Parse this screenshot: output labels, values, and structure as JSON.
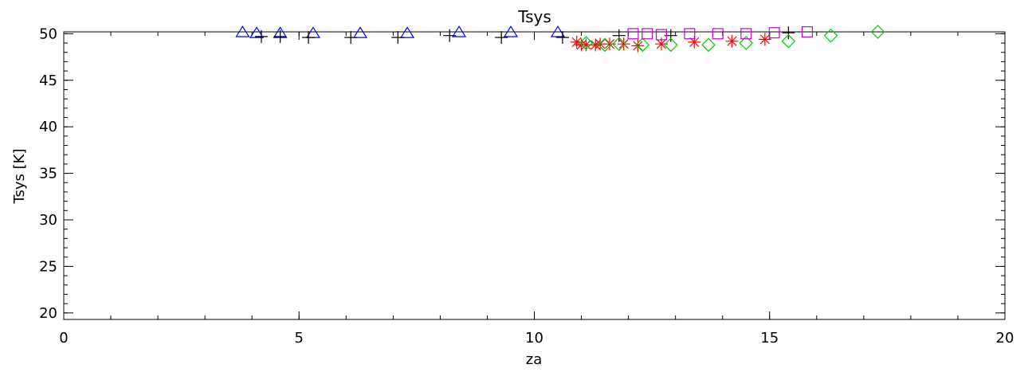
{
  "chart_data": {
    "type": "scatter",
    "title": "Tsys",
    "xlabel": "za",
    "ylabel": "Tsys [K]",
    "xlim": [
      0,
      20
    ],
    "ylim": [
      19.3,
      50.2
    ],
    "xticks": [
      0,
      5,
      10,
      15,
      20
    ],
    "yticks": [
      20,
      25,
      30,
      35,
      40,
      45,
      50
    ],
    "x_minor_step": 1,
    "y_minor_step": 1,
    "grid": false,
    "legend": "none",
    "series": [
      {
        "marker": "triangle",
        "color": "#0000ff",
        "points": [
          [
            3.8,
            50.1
          ],
          [
            4.1,
            50.0
          ],
          [
            4.6,
            50.0
          ],
          [
            5.3,
            50.0
          ],
          [
            6.3,
            50.0
          ],
          [
            7.3,
            50.0
          ],
          [
            8.4,
            50.1
          ],
          [
            9.5,
            50.1
          ],
          [
            10.5,
            50.1
          ]
        ]
      },
      {
        "marker": "plus",
        "color": "#000000",
        "points": [
          [
            4.2,
            49.7
          ],
          [
            4.6,
            49.7
          ],
          [
            5.2,
            49.6
          ],
          [
            6.1,
            49.6
          ],
          [
            7.1,
            49.6
          ],
          [
            8.2,
            49.8
          ],
          [
            9.3,
            49.6
          ],
          [
            10.6,
            49.6
          ],
          [
            11.8,
            49.8
          ],
          [
            12.9,
            49.8
          ],
          [
            15.4,
            50.1
          ]
        ]
      },
      {
        "marker": "asterisk",
        "color": "#ff0000",
        "points": [
          [
            10.9,
            49.1
          ],
          [
            11.0,
            48.8
          ],
          [
            11.1,
            48.8
          ],
          [
            11.3,
            48.8
          ],
          [
            11.4,
            48.9
          ],
          [
            11.6,
            48.9
          ],
          [
            11.9,
            48.9
          ],
          [
            12.2,
            48.7
          ],
          [
            12.7,
            48.9
          ],
          [
            13.4,
            49.1
          ],
          [
            14.2,
            49.2
          ],
          [
            14.9,
            49.4
          ]
        ]
      },
      {
        "marker": "diamond",
        "color": "#00cc00",
        "points": [
          [
            11.1,
            49.0
          ],
          [
            11.5,
            48.8
          ],
          [
            11.8,
            48.9
          ],
          [
            12.3,
            48.8
          ],
          [
            12.9,
            48.8
          ],
          [
            13.7,
            48.8
          ],
          [
            14.5,
            49.0
          ],
          [
            15.4,
            49.2
          ],
          [
            16.3,
            49.8
          ],
          [
            17.3,
            50.2
          ]
        ]
      },
      {
        "marker": "square",
        "color": "#cc00cc",
        "points": [
          [
            12.1,
            50.0
          ],
          [
            12.4,
            50.0
          ],
          [
            12.7,
            49.9
          ],
          [
            13.3,
            50.0
          ],
          [
            13.9,
            50.0
          ],
          [
            14.5,
            50.0
          ],
          [
            15.1,
            50.1
          ],
          [
            15.8,
            50.2
          ]
        ]
      }
    ]
  }
}
